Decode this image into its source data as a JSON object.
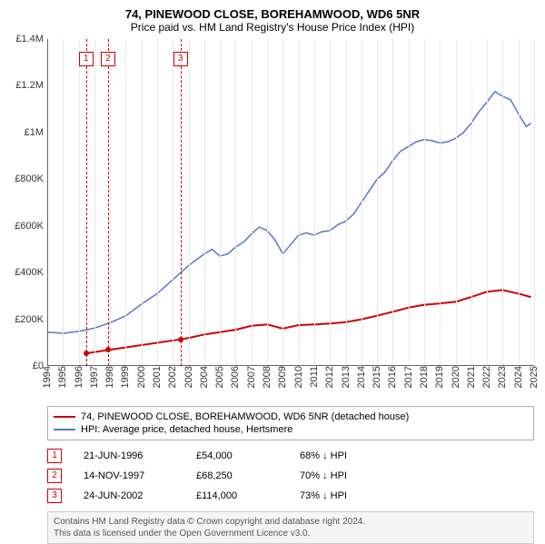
{
  "title": "74, PINEWOOD CLOSE, BOREHAMWOOD, WD6 5NR",
  "subtitle": "Price paid vs. HM Land Registry's House Price Index (HPI)",
  "chart": {
    "type": "line",
    "x_years": [
      1994,
      1995,
      1996,
      1997,
      1998,
      1999,
      2000,
      2001,
      2002,
      2003,
      2004,
      2005,
      2006,
      2007,
      2008,
      2009,
      2010,
      2011,
      2012,
      2013,
      2014,
      2015,
      2016,
      2017,
      2018,
      2019,
      2020,
      2021,
      2022,
      2023,
      2024,
      2025
    ],
    "ylim": [
      0,
      1400000
    ],
    "y_ticks": [
      0,
      200000,
      400000,
      600000,
      800000,
      1000000,
      1200000,
      1400000
    ],
    "y_tick_labels": [
      "£0",
      "£200K",
      "£400K",
      "£600K",
      "£800K",
      "£1M",
      "£1.2M",
      "£1.4M"
    ],
    "background_color": "#ffffff",
    "grid_color": "#e8e8e8",
    "axis_color": "#666666",
    "series": [
      {
        "name": "property",
        "color": "#cc0000",
        "width": 2,
        "points": [
          [
            1996.47,
            54000
          ],
          [
            1997.87,
            68250
          ],
          [
            2002.48,
            114000
          ],
          [
            2003,
            120000
          ],
          [
            2004,
            135000
          ],
          [
            2005,
            145000
          ],
          [
            2006,
            155000
          ],
          [
            2007,
            172000
          ],
          [
            2008,
            178000
          ],
          [
            2009,
            160000
          ],
          [
            2010,
            175000
          ],
          [
            2011,
            178000
          ],
          [
            2012,
            182000
          ],
          [
            2013,
            188000
          ],
          [
            2014,
            200000
          ],
          [
            2015,
            215000
          ],
          [
            2016,
            232000
          ],
          [
            2017,
            250000
          ],
          [
            2018,
            262000
          ],
          [
            2019,
            268000
          ],
          [
            2020,
            275000
          ],
          [
            2021,
            295000
          ],
          [
            2022,
            318000
          ],
          [
            2023,
            325000
          ],
          [
            2024,
            310000
          ],
          [
            2024.8,
            295000
          ]
        ]
      },
      {
        "name": "hpi",
        "color": "#5577cc",
        "width": 1.5,
        "points": [
          [
            1994,
            145000
          ],
          [
            1995,
            140000
          ],
          [
            1996,
            148000
          ],
          [
            1997,
            162000
          ],
          [
            1998,
            185000
          ],
          [
            1999,
            215000
          ],
          [
            2000,
            265000
          ],
          [
            2001,
            310000
          ],
          [
            2002,
            370000
          ],
          [
            2003,
            430000
          ],
          [
            2004,
            480000
          ],
          [
            2004.5,
            500000
          ],
          [
            2005,
            470000
          ],
          [
            2005.5,
            480000
          ],
          [
            2006,
            510000
          ],
          [
            2006.5,
            530000
          ],
          [
            2007,
            565000
          ],
          [
            2007.5,
            595000
          ],
          [
            2008,
            580000
          ],
          [
            2008.5,
            540000
          ],
          [
            2009,
            480000
          ],
          [
            2009.5,
            520000
          ],
          [
            2010,
            560000
          ],
          [
            2010.5,
            570000
          ],
          [
            2011,
            560000
          ],
          [
            2011.5,
            575000
          ],
          [
            2012,
            580000
          ],
          [
            2012.5,
            605000
          ],
          [
            2013,
            620000
          ],
          [
            2013.5,
            650000
          ],
          [
            2014,
            700000
          ],
          [
            2014.5,
            750000
          ],
          [
            2015,
            800000
          ],
          [
            2015.5,
            830000
          ],
          [
            2016,
            880000
          ],
          [
            2016.5,
            920000
          ],
          [
            2017,
            940000
          ],
          [
            2017.5,
            960000
          ],
          [
            2018,
            970000
          ],
          [
            2018.5,
            965000
          ],
          [
            2019,
            955000
          ],
          [
            2019.5,
            960000
          ],
          [
            2020,
            975000
          ],
          [
            2020.5,
            1000000
          ],
          [
            2021,
            1040000
          ],
          [
            2021.5,
            1090000
          ],
          [
            2022,
            1130000
          ],
          [
            2022.5,
            1175000
          ],
          [
            2023,
            1155000
          ],
          [
            2023.5,
            1140000
          ],
          [
            2024,
            1080000
          ],
          [
            2024.5,
            1025000
          ],
          [
            2024.8,
            1040000
          ]
        ]
      }
    ],
    "sale_markers": [
      {
        "n": "1",
        "year": 1996.47,
        "price": 54000,
        "color": "#cc0000"
      },
      {
        "n": "2",
        "year": 1997.87,
        "price": 68250,
        "color": "#cc0000"
      },
      {
        "n": "3",
        "year": 2002.48,
        "price": 114000,
        "color": "#cc0000"
      }
    ]
  },
  "legend": [
    {
      "color": "#cc0000",
      "label": "74, PINEWOOD CLOSE, BOREHAMWOOD, WD6 5NR (detached house)"
    },
    {
      "color": "#5577cc",
      "label": "HPI: Average price, detached house, Hertsmere"
    }
  ],
  "sales": [
    {
      "n": "1",
      "date": "21-JUN-1996",
      "price": "£54,000",
      "diff": "68% ↓ HPI",
      "color": "#cc0000"
    },
    {
      "n": "2",
      "date": "14-NOV-1997",
      "price": "£68,250",
      "diff": "70% ↓ HPI",
      "color": "#cc0000"
    },
    {
      "n": "3",
      "date": "24-JUN-2002",
      "price": "£114,000",
      "diff": "73% ↓ HPI",
      "color": "#cc0000"
    }
  ],
  "footer_l1": "Contains HM Land Registry data © Crown copyright and database right 2024.",
  "footer_l2": "This data is licensed under the Open Government Licence v3.0."
}
